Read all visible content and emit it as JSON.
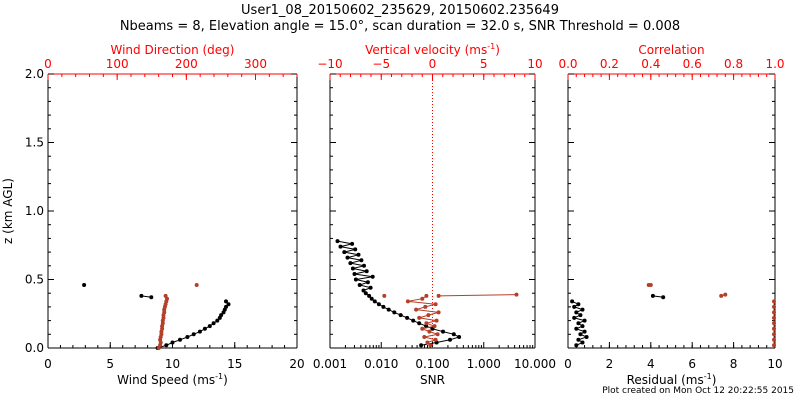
{
  "header": {
    "title_line1": "User1_08_20150602_235629, 20150602.235649",
    "title_line2": "Nbeams = 8, Elevation angle = 15.0°, scan duration = 32.0 s, SNR Threshold = 0.008"
  },
  "footer": {
    "text": "Plot created on Mon Oct 12 20:22:55 2015"
  },
  "colors": {
    "axis": "#000000",
    "top_axis": "#ff0000",
    "series_black": "#000000",
    "series_red": "#b5402a"
  },
  "chart_data": [
    {
      "type": "scatter",
      "ylabel": "z (km AGL)",
      "ylim": [
        0,
        2.0
      ],
      "yticks": [
        "0.0",
        "0.5",
        "1.0",
        "1.5",
        "2.0"
      ],
      "bottom_axis": {
        "label": "Wind Speed (ms",
        "label_sup": "-1",
        "label_end": ")",
        "lim": [
          0,
          20
        ],
        "ticks": [
          0,
          5,
          10,
          15,
          20
        ],
        "ticklabels": [
          "0",
          "5",
          "10",
          "15",
          "20"
        ],
        "scale": "linear"
      },
      "top_axis": {
        "label": "Wind Direction (deg)",
        "lim": [
          0,
          360
        ],
        "ticks": [
          0,
          100,
          200,
          300
        ],
        "ticklabels": [
          "0",
          "100",
          "200",
          "300"
        ],
        "scale": "linear"
      },
      "series": [
        {
          "axis": "bottom",
          "color": "black",
          "line": true,
          "points": [
            [
              8.8,
              0.0
            ],
            [
              9.5,
              0.02
            ],
            [
              10.0,
              0.04
            ],
            [
              10.6,
              0.06
            ],
            [
              11.2,
              0.08
            ],
            [
              11.7,
              0.1
            ],
            [
              12.2,
              0.12
            ],
            [
              12.6,
              0.14
            ],
            [
              13.0,
              0.16
            ],
            [
              13.3,
              0.18
            ],
            [
              13.6,
              0.2
            ],
            [
              13.8,
              0.22
            ],
            [
              13.9,
              0.24
            ],
            [
              14.1,
              0.26
            ],
            [
              14.2,
              0.28
            ],
            [
              14.3,
              0.3
            ],
            [
              14.5,
              0.32
            ],
            [
              14.3,
              0.34
            ]
          ]
        },
        {
          "axis": "bottom",
          "color": "black",
          "line": true,
          "points": [
            [
              7.5,
              0.38
            ],
            [
              8.3,
              0.37
            ]
          ]
        },
        {
          "axis": "bottom",
          "color": "black",
          "line": false,
          "points": [
            [
              2.9,
              0.46
            ]
          ]
        },
        {
          "axis": "top",
          "color": "red",
          "line": true,
          "points": [
            [
              160,
              0.0
            ],
            [
              162,
              0.02
            ],
            [
              163,
              0.04
            ],
            [
              162,
              0.06
            ],
            [
              163,
              0.08
            ],
            [
              164,
              0.1
            ],
            [
              164,
              0.12
            ],
            [
              165,
              0.14
            ],
            [
              165,
              0.16
            ],
            [
              166,
              0.18
            ],
            [
              166,
              0.2
            ],
            [
              167,
              0.22
            ],
            [
              167,
              0.24
            ],
            [
              168,
              0.26
            ],
            [
              168,
              0.28
            ],
            [
              169,
              0.3
            ],
            [
              170,
              0.32
            ],
            [
              171,
              0.34
            ],
            [
              172,
              0.36
            ]
          ]
        },
        {
          "axis": "top",
          "color": "red",
          "line": false,
          "points": [
            [
              170,
              0.38
            ],
            [
              215,
              0.46
            ]
          ]
        }
      ]
    },
    {
      "type": "scatter",
      "ylim": [
        0,
        2.0
      ],
      "bottom_axis": {
        "label": "SNR",
        "lim": [
          0.001,
          10
        ],
        "scale": "log",
        "ticks": [
          0.001,
          0.01,
          0.1,
          1,
          10
        ],
        "ticklabels": [
          "0.001",
          "0.010",
          "0.100",
          "1.000",
          "10.000"
        ]
      },
      "top_axis": {
        "label": "Vertical velocity (ms",
        "label_sup": "-1",
        "label_end": ")",
        "lim": [
          -10,
          10
        ],
        "scale": "linear",
        "ticks": [
          -10,
          -5,
          0,
          5,
          10
        ],
        "ticklabels": [
          "−10",
          "−5",
          "0",
          "5",
          "10"
        ]
      },
      "reference_line_top_x": 0,
      "series": [
        {
          "axis": "bottom",
          "color": "black",
          "line": true,
          "points": [
            [
              0.06,
              0.02
            ],
            [
              0.12,
              0.04
            ],
            [
              0.22,
              0.06
            ],
            [
              0.33,
              0.08
            ],
            [
              0.26,
              0.1
            ],
            [
              0.16,
              0.12
            ],
            [
              0.1,
              0.14
            ],
            [
              0.075,
              0.16
            ],
            [
              0.055,
              0.18
            ],
            [
              0.042,
              0.2
            ],
            [
              0.032,
              0.22
            ],
            [
              0.024,
              0.24
            ],
            [
              0.018,
              0.26
            ],
            [
              0.014,
              0.28
            ],
            [
              0.011,
              0.3
            ],
            [
              0.009,
              0.32
            ],
            [
              0.0075,
              0.34
            ],
            [
              0.0065,
              0.36
            ],
            [
              0.0058,
              0.38
            ],
            [
              0.005,
              0.4
            ],
            [
              0.0045,
              0.42
            ],
            [
              0.0062,
              0.44
            ],
            [
              0.0038,
              0.46
            ],
            [
              0.0055,
              0.48
            ],
            [
              0.0032,
              0.5
            ],
            [
              0.0068,
              0.52
            ],
            [
              0.003,
              0.54
            ],
            [
              0.0052,
              0.56
            ],
            [
              0.0028,
              0.58
            ],
            [
              0.0046,
              0.6
            ],
            [
              0.0025,
              0.62
            ],
            [
              0.0041,
              0.64
            ],
            [
              0.0022,
              0.66
            ],
            [
              0.0036,
              0.68
            ],
            [
              0.0019,
              0.7
            ],
            [
              0.0031,
              0.72
            ],
            [
              0.0016,
              0.74
            ],
            [
              0.0027,
              0.76
            ],
            [
              0.0014,
              0.78
            ]
          ]
        },
        {
          "axis": "top",
          "color": "red",
          "line": true,
          "points": [
            [
              -0.2,
              0.02
            ],
            [
              -0.5,
              0.04
            ],
            [
              0.3,
              0.06
            ],
            [
              -0.8,
              0.08
            ],
            [
              0.5,
              0.1
            ],
            [
              -0.3,
              0.12
            ],
            [
              -1.0,
              0.14
            ],
            [
              0.2,
              0.16
            ],
            [
              -0.6,
              0.18
            ],
            [
              0.4,
              0.2
            ],
            [
              -1.3,
              0.22
            ],
            [
              -0.4,
              0.24
            ],
            [
              0.6,
              0.26
            ],
            [
              -1.6,
              0.28
            ],
            [
              -0.7,
              0.3
            ],
            [
              0.3,
              0.32
            ],
            [
              -2.4,
              0.34
            ],
            [
              -1.0,
              0.36
            ],
            [
              -0.6,
              0.38
            ]
          ]
        },
        {
          "axis": "top",
          "color": "red",
          "line": true,
          "points": [
            [
              0.6,
              0.38
            ],
            [
              8.2,
              0.39
            ]
          ]
        },
        {
          "axis": "top",
          "color": "red",
          "line": false,
          "points": [
            [
              -4.7,
              0.38
            ]
          ]
        }
      ]
    },
    {
      "type": "scatter",
      "ylim": [
        0,
        2.0
      ],
      "bottom_axis": {
        "label": "Residual (ms",
        "label_sup": "-1",
        "label_end": ")",
        "lim": [
          0,
          10
        ],
        "scale": "linear",
        "ticks": [
          0,
          2,
          4,
          6,
          8,
          10
        ],
        "ticklabels": [
          "0",
          "2",
          "4",
          "6",
          "8",
          "10"
        ]
      },
      "top_axis": {
        "label": "Correlation",
        "lim": [
          0,
          1
        ],
        "scale": "linear",
        "ticks": [
          0,
          0.2,
          0.4,
          0.6,
          0.8,
          1.0
        ],
        "ticklabels": [
          "0.0",
          "0.2",
          "0.4",
          "0.6",
          "0.8",
          "1.0"
        ]
      },
      "series": [
        {
          "axis": "bottom",
          "color": "black",
          "line": true,
          "points": [
            [
              0.4,
              0.02
            ],
            [
              0.7,
              0.04
            ],
            [
              0.5,
              0.06
            ],
            [
              0.9,
              0.08
            ],
            [
              0.6,
              0.1
            ],
            [
              0.8,
              0.12
            ],
            [
              0.4,
              0.14
            ],
            [
              0.7,
              0.16
            ],
            [
              0.5,
              0.18
            ],
            [
              0.8,
              0.2
            ],
            [
              0.3,
              0.22
            ],
            [
              0.6,
              0.24
            ],
            [
              0.4,
              0.26
            ],
            [
              0.7,
              0.28
            ],
            [
              0.3,
              0.3
            ],
            [
              0.5,
              0.32
            ],
            [
              0.2,
              0.34
            ]
          ]
        },
        {
          "axis": "bottom",
          "color": "black",
          "line": true,
          "points": [
            [
              4.1,
              0.38
            ],
            [
              4.6,
              0.37
            ]
          ]
        },
        {
          "axis": "top",
          "color": "red",
          "line": true,
          "points": [
            [
              0.995,
              0.02
            ],
            [
              0.995,
              0.06
            ],
            [
              0.995,
              0.1
            ],
            [
              0.995,
              0.14
            ],
            [
              0.995,
              0.18
            ],
            [
              0.995,
              0.22
            ],
            [
              0.995,
              0.26
            ],
            [
              0.995,
              0.3
            ],
            [
              0.995,
              0.34
            ]
          ]
        },
        {
          "axis": "top",
          "color": "red",
          "line": true,
          "points": [
            [
              0.74,
              0.38
            ],
            [
              0.76,
              0.39
            ]
          ]
        },
        {
          "axis": "top",
          "color": "red",
          "line": false,
          "points": [
            [
              0.39,
              0.46
            ],
            [
              0.4,
              0.46
            ]
          ]
        }
      ]
    }
  ]
}
